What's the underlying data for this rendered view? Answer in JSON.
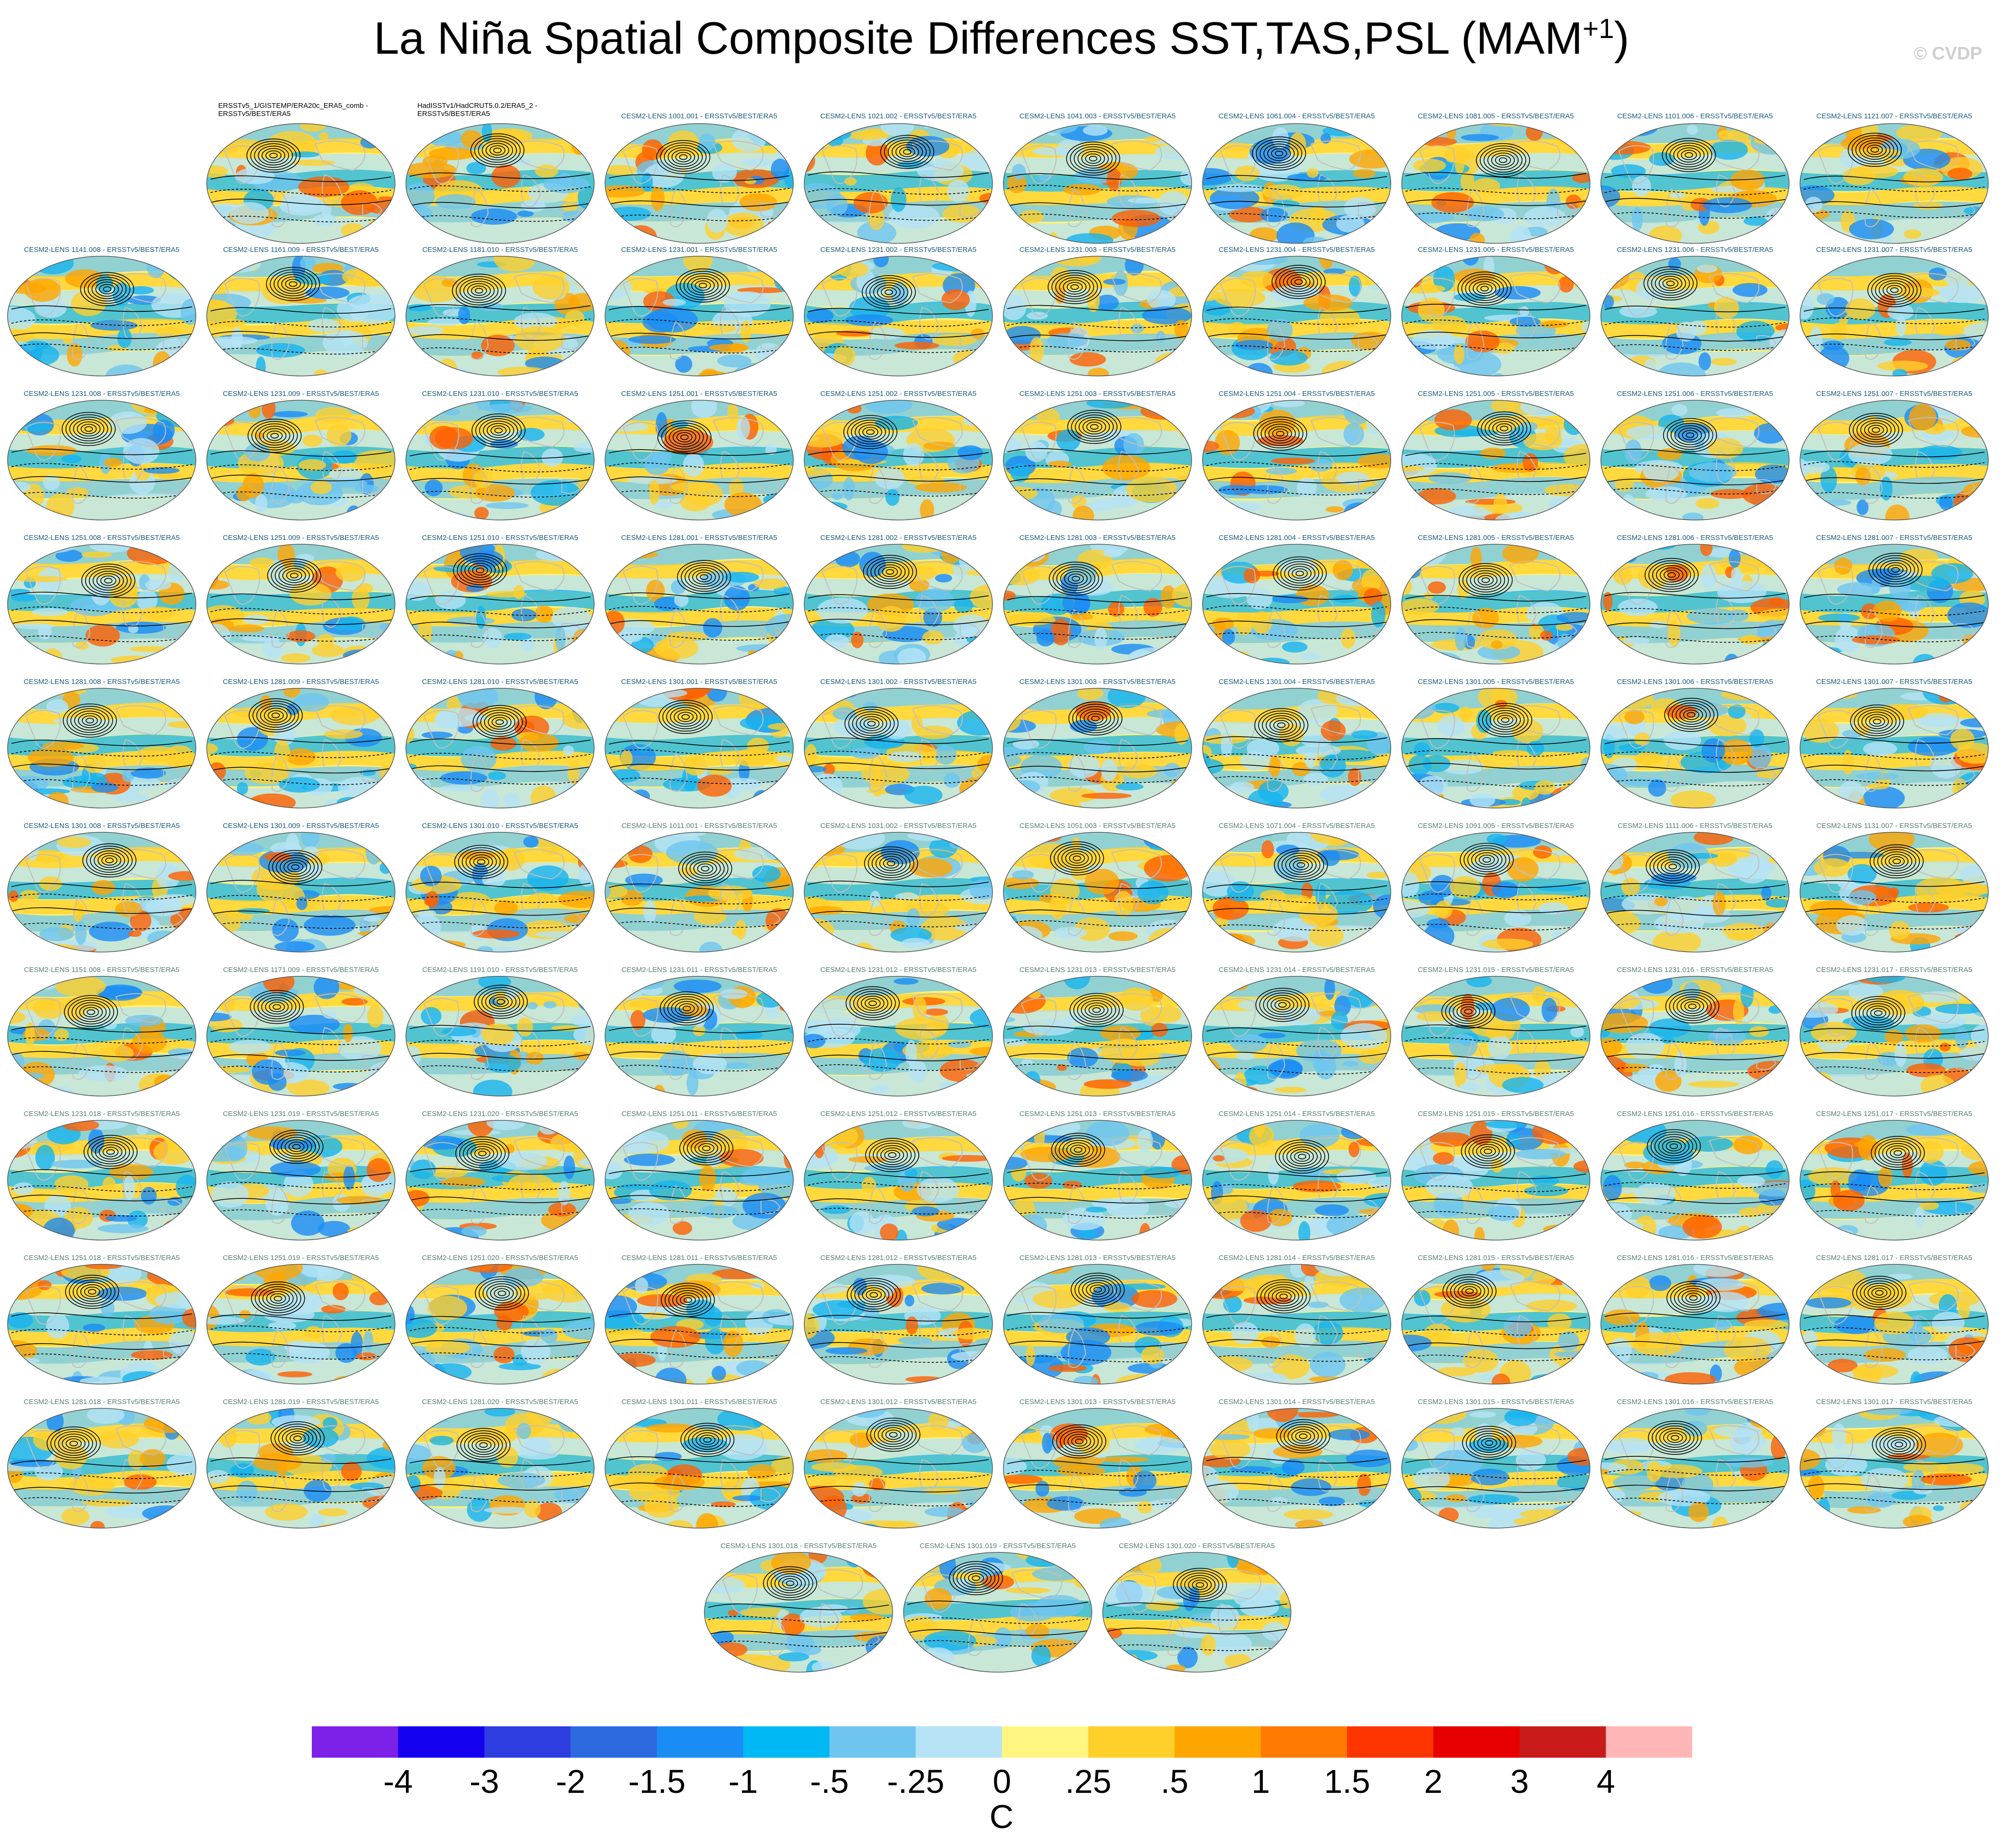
{
  "title": {
    "main": "La Niña Spatial Composite Differences SST,TAS,PSL (MAM",
    "superscript": "+1",
    "close": ")"
  },
  "watermark": "© CVDP",
  "label_colors": {
    "observation": "#000000",
    "model_dark": "#1a5a78",
    "model_light": "#5a7f70"
  },
  "panels": [
    {
      "label": "ERSSTv5_1/GISTEMP/ERA20c_ERA5_comb - ERSSTv5/BEST/ERA5",
      "kind": "observation"
    },
    {
      "label": "HadISSTv1/HadCRUT5.0.2/ERA5_2 - ERSSTv5/BEST/ERA5",
      "kind": "observation"
    },
    {
      "label": "CESM2-LENS 1001.001 - ERSSTv5/BEST/ERA5",
      "kind": "model_dark"
    },
    {
      "label": "CESM2-LENS 1021.002 - ERSSTv5/BEST/ERA5",
      "kind": "model_dark"
    },
    {
      "label": "CESM2-LENS 1041.003 - ERSSTv5/BEST/ERA5",
      "kind": "model_dark"
    },
    {
      "label": "CESM2-LENS 1061.004 - ERSSTv5/BEST/ERA5",
      "kind": "model_dark"
    },
    {
      "label": "CESM2-LENS 1081.005 - ERSSTv5/BEST/ERA5",
      "kind": "model_dark"
    },
    {
      "label": "CESM2-LENS 1101.006 - ERSSTv5/BEST/ERA5",
      "kind": "model_dark"
    },
    {
      "label": "CESM2-LENS 1121.007 - ERSSTv5/BEST/ERA5",
      "kind": "model_dark"
    },
    {
      "label": "CESM2-LENS 1141.008 - ERSSTv5/BEST/ERA5",
      "kind": "model_dark"
    },
    {
      "label": "CESM2-LENS 1161.009 - ERSSTv5/BEST/ERA5",
      "kind": "model_dark"
    },
    {
      "label": "CESM2-LENS 1181.010 - ERSSTv5/BEST/ERA5",
      "kind": "model_dark"
    },
    {
      "label": "CESM2-LENS 1231.001 - ERSSTv5/BEST/ERA5",
      "kind": "model_dark"
    },
    {
      "label": "CESM2-LENS 1231.002 - ERSSTv5/BEST/ERA5",
      "kind": "model_dark"
    },
    {
      "label": "CESM2-LENS 1231.003 - ERSSTv5/BEST/ERA5",
      "kind": "model_dark"
    },
    {
      "label": "CESM2-LENS 1231.004 - ERSSTv5/BEST/ERA5",
      "kind": "model_dark"
    },
    {
      "label": "CESM2-LENS 1231.005 - ERSSTv5/BEST/ERA5",
      "kind": "model_dark"
    },
    {
      "label": "CESM2-LENS 1231.006 - ERSSTv5/BEST/ERA5",
      "kind": "model_dark"
    },
    {
      "label": "CESM2-LENS 1231.007 - ERSSTv5/BEST/ERA5",
      "kind": "model_dark"
    },
    {
      "label": "CESM2-LENS 1231.008 - ERSSTv5/BEST/ERA5",
      "kind": "model_dark"
    },
    {
      "label": "CESM2-LENS 1231.009 - ERSSTv5/BEST/ERA5",
      "kind": "model_dark"
    },
    {
      "label": "CESM2-LENS 1231.010 - ERSSTv5/BEST/ERA5",
      "kind": "model_dark"
    },
    {
      "label": "CESM2-LENS 1251.001 - ERSSTv5/BEST/ERA5",
      "kind": "model_dark"
    },
    {
      "label": "CESM2-LENS 1251.002 - ERSSTv5/BEST/ERA5",
      "kind": "model_dark"
    },
    {
      "label": "CESM2-LENS 1251.003 - ERSSTv5/BEST/ERA5",
      "kind": "model_dark"
    },
    {
      "label": "CESM2-LENS 1251.004 - ERSSTv5/BEST/ERA5",
      "kind": "model_dark"
    },
    {
      "label": "CESM2-LENS 1251.005 - ERSSTv5/BEST/ERA5",
      "kind": "model_dark"
    },
    {
      "label": "CESM2-LENS 1251.006 - ERSSTv5/BEST/ERA5",
      "kind": "model_dark"
    },
    {
      "label": "CESM2-LENS 1251.007 - ERSSTv5/BEST/ERA5",
      "kind": "model_dark"
    },
    {
      "label": "CESM2-LENS 1251.008 - ERSSTv5/BEST/ERA5",
      "kind": "model_dark"
    },
    {
      "label": "CESM2-LENS 1251.009 - ERSSTv5/BEST/ERA5",
      "kind": "model_dark"
    },
    {
      "label": "CESM2-LENS 1251.010 - ERSSTv5/BEST/ERA5",
      "kind": "model_dark"
    },
    {
      "label": "CESM2-LENS 1281.001 - ERSSTv5/BEST/ERA5",
      "kind": "model_dark"
    },
    {
      "label": "CESM2-LENS 1281.002 - ERSSTv5/BEST/ERA5",
      "kind": "model_dark"
    },
    {
      "label": "CESM2-LENS 1281.003 - ERSSTv5/BEST/ERA5",
      "kind": "model_dark"
    },
    {
      "label": "CESM2-LENS 1281.004 - ERSSTv5/BEST/ERA5",
      "kind": "model_dark"
    },
    {
      "label": "CESM2-LENS 1281.005 - ERSSTv5/BEST/ERA5",
      "kind": "model_dark"
    },
    {
      "label": "CESM2-LENS 1281.006 - ERSSTv5/BEST/ERA5",
      "kind": "model_dark"
    },
    {
      "label": "CESM2-LENS 1281.007 - ERSSTv5/BEST/ERA5",
      "kind": "model_dark"
    },
    {
      "label": "CESM2-LENS 1281.008 - ERSSTv5/BEST/ERA5",
      "kind": "model_dark"
    },
    {
      "label": "CESM2-LENS 1281.009 - ERSSTv5/BEST/ERA5",
      "kind": "model_dark"
    },
    {
      "label": "CESM2-LENS 1281.010 - ERSSTv5/BEST/ERA5",
      "kind": "model_dark"
    },
    {
      "label": "CESM2-LENS 1301.001 - ERSSTv5/BEST/ERA5",
      "kind": "model_dark"
    },
    {
      "label": "CESM2-LENS 1301.002 - ERSSTv5/BEST/ERA5",
      "kind": "model_dark"
    },
    {
      "label": "CESM2-LENS 1301.003 - ERSSTv5/BEST/ERA5",
      "kind": "model_dark"
    },
    {
      "label": "CESM2-LENS 1301.004 - ERSSTv5/BEST/ERA5",
      "kind": "model_dark"
    },
    {
      "label": "CESM2-LENS 1301.005 - ERSSTv5/BEST/ERA5",
      "kind": "model_dark"
    },
    {
      "label": "CESM2-LENS 1301.006 - ERSSTv5/BEST/ERA5",
      "kind": "model_dark"
    },
    {
      "label": "CESM2-LENS 1301.007 - ERSSTv5/BEST/ERA5",
      "kind": "model_dark"
    },
    {
      "label": "CESM2-LENS 1301.008 - ERSSTv5/BEST/ERA5",
      "kind": "model_dark"
    },
    {
      "label": "CESM2-LENS 1301.009 - ERSSTv5/BEST/ERA5",
      "kind": "model_dark"
    },
    {
      "label": "CESM2-LENS 1301.010 - ERSSTv5/BEST/ERA5",
      "kind": "model_dark"
    },
    {
      "label": "CESM2-LENS 1011.001 - ERSSTv5/BEST/ERA5",
      "kind": "model_light"
    },
    {
      "label": "CESM2-LENS 1031.002 - ERSSTv5/BEST/ERA5",
      "kind": "model_light"
    },
    {
      "label": "CESM2-LENS 1051.003 - ERSSTv5/BEST/ERA5",
      "kind": "model_light"
    },
    {
      "label": "CESM2-LENS 1071.004 - ERSSTv5/BEST/ERA5",
      "kind": "model_light"
    },
    {
      "label": "CESM2-LENS 1091.005 - ERSSTv5/BEST/ERA5",
      "kind": "model_light"
    },
    {
      "label": "CESM2-LENS 1111.006 - ERSSTv5/BEST/ERA5",
      "kind": "model_light"
    },
    {
      "label": "CESM2-LENS 1131.007 - ERSSTv5/BEST/ERA5",
      "kind": "model_light"
    },
    {
      "label": "CESM2-LENS 1151.008 - ERSSTv5/BEST/ERA5",
      "kind": "model_light"
    },
    {
      "label": "CESM2-LENS 1171.009 - ERSSTv5/BEST/ERA5",
      "kind": "model_light"
    },
    {
      "label": "CESM2-LENS 1191.010 - ERSSTv5/BEST/ERA5",
      "kind": "model_light"
    },
    {
      "label": "CESM2-LENS 1231.011 - ERSSTv5/BEST/ERA5",
      "kind": "model_light"
    },
    {
      "label": "CESM2-LENS 1231.012 - ERSSTv5/BEST/ERA5",
      "kind": "model_light"
    },
    {
      "label": "CESM2-LENS 1231.013 - ERSSTv5/BEST/ERA5",
      "kind": "model_light"
    },
    {
      "label": "CESM2-LENS 1231.014 - ERSSTv5/BEST/ERA5",
      "kind": "model_light"
    },
    {
      "label": "CESM2-LENS 1231.015 - ERSSTv5/BEST/ERA5",
      "kind": "model_light"
    },
    {
      "label": "CESM2-LENS 1231.016 - ERSSTv5/BEST/ERA5",
      "kind": "model_light"
    },
    {
      "label": "CESM2-LENS 1231.017 - ERSSTv5/BEST/ERA5",
      "kind": "model_light"
    },
    {
      "label": "CESM2-LENS 1231.018 - ERSSTv5/BEST/ERA5",
      "kind": "model_light"
    },
    {
      "label": "CESM2-LENS 1231.019 - ERSSTv5/BEST/ERA5",
      "kind": "model_light"
    },
    {
      "label": "CESM2-LENS 1231.020 - ERSSTv5/BEST/ERA5",
      "kind": "model_light"
    },
    {
      "label": "CESM2-LENS 1251.011 - ERSSTv5/BEST/ERA5",
      "kind": "model_light"
    },
    {
      "label": "CESM2-LENS 1251.012 - ERSSTv5/BEST/ERA5",
      "kind": "model_light"
    },
    {
      "label": "CESM2-LENS 1251.013 - ERSSTv5/BEST/ERA5",
      "kind": "model_light"
    },
    {
      "label": "CESM2-LENS 1251.014 - ERSSTv5/BEST/ERA5",
      "kind": "model_light"
    },
    {
      "label": "CESM2-LENS 1251.015 - ERSSTv5/BEST/ERA5",
      "kind": "model_light"
    },
    {
      "label": "CESM2-LENS 1251.016 - ERSSTv5/BEST/ERA5",
      "kind": "model_light"
    },
    {
      "label": "CESM2-LENS 1251.017 - ERSSTv5/BEST/ERA5",
      "kind": "model_light"
    },
    {
      "label": "CESM2-LENS 1251.018 - ERSSTv5/BEST/ERA5",
      "kind": "model_light"
    },
    {
      "label": "CESM2-LENS 1251.019 - ERSSTv5/BEST/ERA5",
      "kind": "model_light"
    },
    {
      "label": "CESM2-LENS 1251.020 - ERSSTv5/BEST/ERA5",
      "kind": "model_light"
    },
    {
      "label": "CESM2-LENS 1281.011 - ERSSTv5/BEST/ERA5",
      "kind": "model_light"
    },
    {
      "label": "CESM2-LENS 1281.012 - ERSSTv5/BEST/ERA5",
      "kind": "model_light"
    },
    {
      "label": "CESM2-LENS 1281.013 - ERSSTv5/BEST/ERA5",
      "kind": "model_light"
    },
    {
      "label": "CESM2-LENS 1281.014 - ERSSTv5/BEST/ERA5",
      "kind": "model_light"
    },
    {
      "label": "CESM2-LENS 1281.015 - ERSSTv5/BEST/ERA5",
      "kind": "model_light"
    },
    {
      "label": "CESM2-LENS 1281.016 - ERSSTv5/BEST/ERA5",
      "kind": "model_light"
    },
    {
      "label": "CESM2-LENS 1281.017 - ERSSTv5/BEST/ERA5",
      "kind": "model_light"
    },
    {
      "label": "CESM2-LENS 1281.018 - ERSSTv5/BEST/ERA5",
      "kind": "model_light"
    },
    {
      "label": "CESM2-LENS 1281.019 - ERSSTv5/BEST/ERA5",
      "kind": "model_light"
    },
    {
      "label": "CESM2-LENS 1281.020 - ERSSTv5/BEST/ERA5",
      "kind": "model_light"
    },
    {
      "label": "CESM2-LENS 1301.011 - ERSSTv5/BEST/ERA5",
      "kind": "model_light"
    },
    {
      "label": "CESM2-LENS 1301.012 - ERSSTv5/BEST/ERA5",
      "kind": "model_light"
    },
    {
      "label": "CESM2-LENS 1301.013 - ERSSTv5/BEST/ERA5",
      "kind": "model_light"
    },
    {
      "label": "CESM2-LENS 1301.014 - ERSSTv5/BEST/ERA5",
      "kind": "model_light"
    },
    {
      "label": "CESM2-LENS 1301.015 - ERSSTv5/BEST/ERA5",
      "kind": "model_light"
    },
    {
      "label": "CESM2-LENS 1301.016 - ERSSTv5/BEST/ERA5",
      "kind": "model_light"
    },
    {
      "label": "CESM2-LENS 1301.017 - ERSSTv5/BEST/ERA5",
      "kind": "model_light"
    },
    {
      "label": "CESM2-LENS 1301.018 - ERSSTv5/BEST/ERA5",
      "kind": "model_light"
    },
    {
      "label": "CESM2-LENS 1301.019 - ERSSTv5/BEST/ERA5",
      "kind": "model_light"
    },
    {
      "label": "CESM2-LENS 1301.020 - ERSSTv5/BEST/ERA5",
      "kind": "model_light"
    }
  ],
  "map_colors": {
    "ocean_neutral": "#fff27a",
    "warm": "#ffd02a",
    "warmer": "#ffa500",
    "hot": "#ff6000",
    "cool": "#b5e3f5",
    "cooler": "#6ec5ef",
    "cold": "#17b4ee",
    "colder": "#1a8cf5",
    "land_outline": "#bfbfbf",
    "contour": "#000000"
  },
  "colorbar": {
    "colors": [
      "#7e21e8",
      "#1500f0",
      "#2d3de0",
      "#2e6adf",
      "#1a8cf5",
      "#00b8f3",
      "#6ec5ef",
      "#b5e3f5",
      "#fff580",
      "#ffd02a",
      "#ffa500",
      "#ff7a00",
      "#ff3500",
      "#e60000",
      "#ca1b1b",
      "#ffb6b6"
    ],
    "tick_labels": [
      "-4",
      "-3",
      "-2",
      "-1.5",
      "-1",
      "-.5",
      "-.25",
      "0",
      ".25",
      ".5",
      "1",
      "1.5",
      "2",
      "3",
      "4"
    ],
    "units": "C"
  }
}
